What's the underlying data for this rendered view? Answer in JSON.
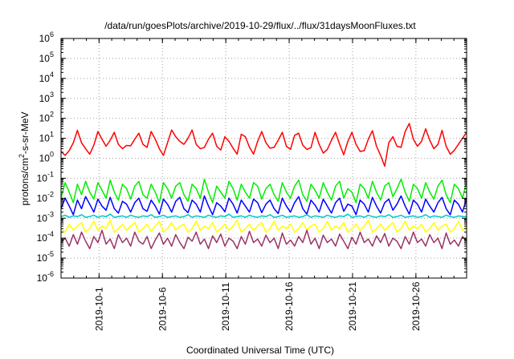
{
  "chart_data": {
    "type": "line",
    "title": "/data/run/goesPlots/archive/2019-10-29/flux/../flux/31daysMoonFluxes.txt",
    "xlabel": "Coordinated Universal Time (UTC)",
    "ylabel": "protons/cm2-s-sr-MeV",
    "ylabel_parts": {
      "pre": "protons/cm",
      "sup": "2",
      "post": "-s-sr-MeV"
    },
    "yscale": "log",
    "ylim": [
      1e-06,
      1000000.0
    ],
    "y_ticks": [
      {
        "base": "10",
        "exp": "-6"
      },
      {
        "base": "10",
        "exp": "-5"
      },
      {
        "base": "10",
        "exp": "-4"
      },
      {
        "base": "10",
        "exp": "-3"
      },
      {
        "base": "10",
        "exp": "-2"
      },
      {
        "base": "10",
        "exp": "-1"
      },
      {
        "base": "10",
        "exp": "0"
      },
      {
        "base": "10",
        "exp": "1"
      },
      {
        "base": "10",
        "exp": "2"
      },
      {
        "base": "10",
        "exp": "3"
      },
      {
        "base": "10",
        "exp": "4"
      },
      {
        "base": "10",
        "exp": "5"
      },
      {
        "base": "10",
        "exp": "6"
      }
    ],
    "xlim": [
      "2019-09-28",
      "2019-10-30"
    ],
    "x_ticks": [
      "2019-10-1",
      "2019-10-6",
      "2019-10-11",
      "2019-10-16",
      "2019-10-21",
      "2019-10-26"
    ],
    "grid": true,
    "series": [
      {
        "color": "#ff0000",
        "values": [
          2.2,
          1.4,
          2.4,
          6,
          25,
          6,
          3,
          1.6,
          4.5,
          22,
          9,
          4,
          8,
          20,
          5,
          3,
          4.4,
          4.2,
          9,
          18,
          5,
          3.5,
          22,
          9,
          3,
          1.4,
          6,
          26,
          12,
          7,
          5,
          10,
          26,
          5,
          3,
          3.5,
          9,
          18,
          4,
          2.6,
          12,
          7,
          3.2,
          1.6,
          16,
          12,
          3.6,
          1.6,
          7,
          22,
          6,
          3.2,
          3.5,
          8,
          20,
          4,
          2.8,
          14,
          18,
          4.5,
          2.8,
          3.4,
          20,
          5,
          1.8,
          2.8,
          8,
          20,
          5,
          1.5,
          7,
          20,
          5,
          2.2,
          2.4,
          9,
          24,
          4,
          1.4,
          0.4,
          6,
          12,
          4,
          3.5,
          22,
          55,
          9,
          4,
          7,
          30,
          8,
          3,
          5,
          25,
          4,
          1.6,
          2.5,
          5,
          10,
          20
        ]
      },
      {
        "color": "#00ee00",
        "values": [
          0.01,
          0.06,
          0.02,
          0.006,
          0.05,
          0.015,
          0.07,
          0.02,
          0.009,
          0.06,
          0.025,
          0.01,
          0.08,
          0.02,
          0.008,
          0.05,
          0.03,
          0.009,
          0.04,
          0.07,
          0.015,
          0.01,
          0.05,
          0.02,
          0.006,
          0.06,
          0.03,
          0.01,
          0.04,
          0.06,
          0.015,
          0.007,
          0.05,
          0.03,
          0.01,
          0.09,
          0.02,
          0.006,
          0.04,
          0.02,
          0.01,
          0.07,
          0.03,
          0.008,
          0.05,
          0.02,
          0.01,
          0.06,
          0.04,
          0.009,
          0.03,
          0.05,
          0.015,
          0.007,
          0.06,
          0.02,
          0.01,
          0.04,
          0.08,
          0.015,
          0.007,
          0.05,
          0.025,
          0.01,
          0.06,
          0.02,
          0.008,
          0.04,
          0.07,
          0.01,
          0.03,
          0.02,
          0.006,
          0.05,
          0.03,
          0.01,
          0.07,
          0.02,
          0.008,
          0.04,
          0.06,
          0.012,
          0.03,
          0.09,
          0.02,
          0.007,
          0.05,
          0.03,
          0.01,
          0.06,
          0.02,
          0.009,
          0.04,
          0.08,
          0.015,
          0.006,
          0.05,
          0.03,
          0.01,
          0.07
        ]
      },
      {
        "color": "#0000ff",
        "values": [
          0.003,
          0.01,
          0.004,
          0.0015,
          0.008,
          0.003,
          0.012,
          0.005,
          0.002,
          0.009,
          0.004,
          0.0025,
          0.011,
          0.003,
          0.0018,
          0.007,
          0.005,
          0.002,
          0.006,
          0.01,
          0.003,
          0.0022,
          0.008,
          0.004,
          0.0016,
          0.009,
          0.005,
          0.002,
          0.007,
          0.011,
          0.003,
          0.0019,
          0.008,
          0.005,
          0.002,
          0.013,
          0.004,
          0.0015,
          0.006,
          0.004,
          0.0021,
          0.01,
          0.005,
          0.0018,
          0.008,
          0.004,
          0.002,
          0.009,
          0.006,
          0.0019,
          0.005,
          0.008,
          0.003,
          0.0017,
          0.01,
          0.004,
          0.002,
          0.006,
          0.012,
          0.003,
          0.0016,
          0.008,
          0.0045,
          0.002,
          0.009,
          0.004,
          0.0018,
          0.006,
          0.01,
          0.0022,
          0.005,
          0.004,
          0.0015,
          0.008,
          0.005,
          0.002,
          0.011,
          0.004,
          0.0018,
          0.006,
          0.009,
          0.0025,
          0.005,
          0.013,
          0.004,
          0.0016,
          0.008,
          0.005,
          0.002,
          0.009,
          0.004,
          0.002,
          0.006,
          0.011,
          0.003,
          0.0015,
          0.008,
          0.005,
          0.002,
          0.01
        ]
      },
      {
        "color": "#00c8c8",
        "values": [
          0.0012,
          0.0014,
          0.0011,
          0.0013,
          0.0012,
          0.0015,
          0.0011,
          0.0012,
          0.0014,
          0.0011,
          0.0013,
          0.0012,
          0.0016,
          0.0011,
          0.0012,
          0.0013,
          0.0011,
          0.0014,
          0.0012,
          0.0011,
          0.0013,
          0.0012,
          0.0015,
          0.0011,
          0.0012,
          0.0014,
          0.0011,
          0.0012,
          0.0013,
          0.0011,
          0.0012,
          0.0015,
          0.0011,
          0.0013,
          0.0012,
          0.0011,
          0.0014,
          0.0012,
          0.0011,
          0.0013,
          0.0012,
          0.0016,
          0.0011,
          0.0012,
          0.0013,
          0.0011,
          0.0014,
          0.0012,
          0.0011,
          0.0013,
          0.0012,
          0.0015,
          0.0011,
          0.0012,
          0.0014,
          0.0011,
          0.0012,
          0.0013,
          0.0011,
          0.0012,
          0.0015,
          0.0011,
          0.0013,
          0.0012,
          0.0011,
          0.0014,
          0.0012,
          0.0011,
          0.0013,
          0.0012,
          0.0016,
          0.0011,
          0.0012,
          0.0013,
          0.0011,
          0.0014,
          0.0012,
          0.0011,
          0.0013,
          0.0012,
          0.0015,
          0.0011,
          0.0012,
          0.0014,
          0.0011,
          0.0012,
          0.0013,
          0.0011,
          0.0012,
          0.0015,
          0.0011,
          0.0013,
          0.0012,
          0.0011,
          0.0014,
          0.0012,
          0.0011,
          0.0013,
          0.0012,
          0.0012
        ]
      },
      {
        "color": "#ffff00",
        "values": [
          0.0003,
          0.0002,
          0.0005,
          0.00025,
          0.0004,
          0.0006,
          0.0002,
          0.0003,
          0.0007,
          0.00025,
          0.0004,
          0.0003,
          0.0008,
          0.0002,
          0.0003,
          0.0005,
          0.00025,
          0.0004,
          0.0006,
          0.0002,
          0.0003,
          0.0005,
          0.00022,
          0.0004,
          0.0007,
          0.0002,
          0.0003,
          0.0006,
          0.00025,
          0.0004,
          0.0005,
          0.0002,
          0.0003,
          0.0007,
          0.00025,
          0.0004,
          0.0003,
          0.0006,
          0.0002,
          0.0003,
          0.0005,
          0.00025,
          0.0004,
          0.0008,
          0.0002,
          0.0003,
          0.0005,
          0.00025,
          0.0004,
          0.0006,
          0.0002,
          0.0003,
          0.0007,
          0.00025,
          0.0004,
          0.0003,
          0.0005,
          0.0002,
          0.0003,
          0.0006,
          0.00025,
          0.0004,
          0.0005,
          0.0002,
          0.0003,
          0.0007,
          0.00025,
          0.0004,
          0.0003,
          0.0006,
          0.0002,
          0.0003,
          0.0005,
          0.00025,
          0.0004,
          0.0008,
          0.0002,
          0.0003,
          0.0005,
          0.00025,
          0.0004,
          0.0006,
          0.0002,
          0.0003,
          0.0007,
          0.00025,
          0.0004,
          0.0003,
          0.0005,
          0.0002,
          0.0003,
          0.0006,
          0.00025,
          0.0004,
          0.0005,
          0.0002,
          0.0003,
          0.0007,
          0.00025,
          0.0004
        ]
      },
      {
        "color": "#993366",
        "values": [
          6e-05,
          0.0001,
          4e-05,
          0.00015,
          5e-05,
          0.0002,
          7e-05,
          3e-05,
          0.00012,
          6e-05,
          0.00025,
          5e-05,
          9e-05,
          3e-05,
          0.00015,
          6e-05,
          0.0001,
          4e-05,
          0.0002,
          7e-05,
          5e-05,
          0.00012,
          3e-05,
          8e-05,
          0.00018,
          5e-05,
          0.0001,
          4e-05,
          0.00015,
          6e-05,
          3e-05,
          0.00011,
          7e-05,
          0.0002,
          5e-05,
          9e-05,
          3e-05,
          0.00013,
          6e-05,
          0.00016,
          4e-05,
          0.0001,
          7e-05,
          3e-05,
          0.00012,
          5e-05,
          0.00022,
          6e-05,
          9e-05,
          4e-05,
          0.00014,
          6e-05,
          0.0001,
          3e-05,
          0.00018,
          5e-05,
          8e-05,
          4e-05,
          0.00012,
          6e-05,
          0.00025,
          5e-05,
          0.0001,
          3e-05,
          0.00014,
          6e-05,
          9e-05,
          4e-05,
          0.00016,
          7e-05,
          3e-05,
          0.00011,
          5e-05,
          0.0002,
          6e-05,
          9e-05,
          4e-05,
          0.00013,
          6e-05,
          0.00017,
          4e-05,
          0.0001,
          7e-05,
          3e-05,
          0.00012,
          5e-05,
          0.0002,
          6e-05,
          9e-05,
          4e-05,
          0.00015,
          6e-05,
          0.0001,
          3e-05,
          0.00018,
          5e-05,
          8e-05,
          4e-05,
          0.00012,
          7e-05
        ]
      }
    ]
  }
}
